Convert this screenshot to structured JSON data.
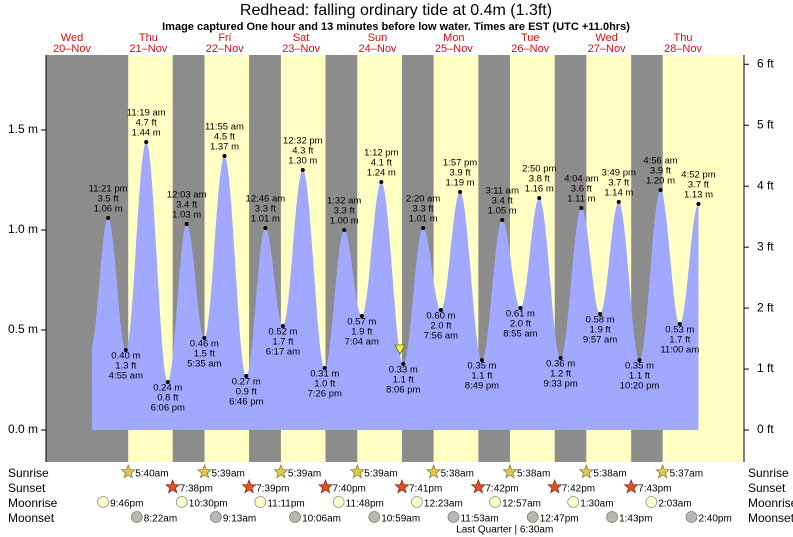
{
  "title": "Redhead: falling  ordinary tide at 0.4m (1.3ft)",
  "subtitle": "Image captured One hour and 13 minutes before low water. Times are EST (UTC +11.0hrs)",
  "rows": {
    "sunrise": "Sunrise",
    "sunset": "Sunset",
    "moonrise": "Moonrise",
    "moonset": "Moonset"
  },
  "chart_data": {
    "type": "tide",
    "ylim": [
      -0.16,
      1.875
    ],
    "yticks": [
      {
        "value": 0,
        "label": "0.0 m"
      },
      {
        "value": 0.5,
        "label": "0.5 m"
      },
      {
        "value": 1,
        "label": "1.0 m"
      },
      {
        "value": 1.5,
        "label": "1.5 m"
      }
    ],
    "y2lim": [
      -0.525,
      6.152
    ],
    "y2ticks": [
      {
        "value": 0,
        "label": "0 ft"
      },
      {
        "value": 1,
        "label": "1 ft"
      },
      {
        "value": 2,
        "label": "2 ft"
      },
      {
        "value": 3,
        "label": "3 ft"
      },
      {
        "value": 4,
        "label": "4 ft"
      },
      {
        "value": 5,
        "label": "5 ft"
      },
      {
        "value": 6,
        "label": "6 ft"
      }
    ],
    "color": "#a0a8ff",
    "days": [
      {
        "weekday": "Wed",
        "date": "20–Nov",
        "moonrise": "9:46pm",
        "tides": [
          {
            "time": "11:21 pm",
            "ft": 3.5,
            "ft_label": "3.5 ft",
            "m": 1.06,
            "m_label": "1.06 m"
          }
        ]
      },
      {
        "weekday": "Thu",
        "date": "21–Nov",
        "sunrise": "5:40am",
        "sunset": "7:38pm",
        "moonrise": "10:30pm",
        "moonset": "8:22am",
        "tides": [
          {
            "time": "4:55 am",
            "ft": 1.3,
            "ft_label": "1.3 ft",
            "m": 0.4,
            "m_label": "0.40 m"
          },
          {
            "time": "11:19 am",
            "ft": 4.7,
            "ft_label": "4.7 ft",
            "m": 1.44,
            "m_label": "1.44 m"
          },
          {
            "time": "6:06 pm",
            "ft": 0.8,
            "ft_label": "0.8 ft",
            "m": 0.24,
            "m_label": "0.24 m"
          }
        ]
      },
      {
        "weekday": "Fri",
        "date": "22–Nov",
        "sunrise": "5:39am",
        "sunset": "7:39pm",
        "moonrise": "11:11pm",
        "moonset": "9:13am",
        "tides": [
          {
            "time": "12:03 am",
            "ft": 3.4,
            "ft_label": "3.4 ft",
            "m": 1.03,
            "m_label": "1.03 m"
          },
          {
            "time": "5:35 am",
            "ft": 1.5,
            "ft_label": "1.5 ft",
            "m": 0.46,
            "m_label": "0.46 m"
          },
          {
            "time": "11:55 am",
            "ft": 4.5,
            "ft_label": "4.5 ft",
            "m": 1.37,
            "m_label": "1.37 m"
          },
          {
            "time": "6:46 pm",
            "ft": 0.9,
            "ft_label": "0.9 ft",
            "m": 0.27,
            "m_label": "0.27 m"
          }
        ]
      },
      {
        "weekday": "Sat",
        "date": "23–Nov",
        "sunrise": "5:39am",
        "sunset": "7:40pm",
        "moonrise": "11:48pm",
        "moonset": "10:06am",
        "tides": [
          {
            "time": "12:46 am",
            "ft": 3.3,
            "ft_label": "3.3 ft",
            "m": 1.01,
            "m_label": "1.01 m"
          },
          {
            "time": "6:17 am",
            "ft": 1.7,
            "ft_label": "1.7 ft",
            "m": 0.52,
            "m_label": "0.52 m"
          },
          {
            "time": "12:32 pm",
            "ft": 4.3,
            "ft_label": "4.3 ft",
            "m": 1.3,
            "m_label": "1.30 m"
          },
          {
            "time": "7:26 pm",
            "ft": 1.0,
            "ft_label": "1.0 ft",
            "m": 0.31,
            "m_label": "0.31 m"
          }
        ]
      },
      {
        "weekday": "Sun",
        "date": "24–Nov",
        "sunrise": "5:39am",
        "sunset": "7:41pm",
        "moonset": "10:59am",
        "tides": [
          {
            "time": "1:32 am",
            "ft": 3.3,
            "ft_label": "3.3 ft",
            "m": 1.0,
            "m_label": "1.00 m"
          },
          {
            "time": "7:04 am",
            "ft": 1.9,
            "ft_label": "1.9 ft",
            "m": 0.57,
            "m_label": "0.57 m"
          },
          {
            "time": "1:12 pm",
            "ft": 4.1,
            "ft_label": "4.1 ft",
            "m": 1.24,
            "m_label": "1.24 m"
          },
          {
            "time": "8:06 pm",
            "ft": 1.1,
            "ft_label": "1.1 ft",
            "m": 0.33,
            "m_label": "0.33 m"
          }
        ]
      },
      {
        "weekday": "Mon",
        "date": "25–Nov",
        "sunrise": "5:38am",
        "sunset": "7:42pm",
        "moonrise": "12:23am",
        "moonset": "11:53am",
        "tides": [
          {
            "time": "2:20 am",
            "ft": 3.3,
            "ft_label": "3.3 ft",
            "m": 1.01,
            "m_label": "1.01 m"
          },
          {
            "time": "7:56 am",
            "ft": 2.0,
            "ft_label": "2.0 ft",
            "m": 0.6,
            "m_label": "0.60 m"
          },
          {
            "time": "1:57 pm",
            "ft": 3.9,
            "ft_label": "3.9 ft",
            "m": 1.19,
            "m_label": "1.19 m"
          },
          {
            "time": "8:49 pm",
            "ft": 1.1,
            "ft_label": "1.1 ft",
            "m": 0.35,
            "m_label": "0.35 m"
          }
        ]
      },
      {
        "weekday": "Tue",
        "date": "26–Nov",
        "sunrise": "5:38am",
        "sunset": "7:42pm",
        "moonrise": "12:57am",
        "moonset": "12:47pm",
        "moon_phase": "Last Quarter | 6:30am",
        "tides": [
          {
            "time": "3:11 am",
            "ft": 3.4,
            "ft_label": "3.4 ft",
            "m": 1.05,
            "m_label": "1.05 m"
          },
          {
            "time": "8:55 am",
            "ft": 2.0,
            "ft_label": "2.0 ft",
            "m": 0.61,
            "m_label": "0.61 m"
          },
          {
            "time": "2:50 pm",
            "ft": 3.8,
            "ft_label": "3.8 ft",
            "m": 1.16,
            "m_label": "1.16 m"
          },
          {
            "time": "9:33 pm",
            "ft": 1.2,
            "ft_label": "1.2 ft",
            "m": 0.36,
            "m_label": "0.36 m"
          }
        ]
      },
      {
        "weekday": "Wed",
        "date": "27–Nov",
        "sunrise": "5:38am",
        "sunset": "7:43pm",
        "moonrise": "1:30am",
        "moonset": "1:43pm",
        "tides": [
          {
            "time": "4:04 am",
            "ft": 3.6,
            "ft_label": "3.6 ft",
            "m": 1.11,
            "m_label": "1.11 m"
          },
          {
            "time": "9:57 am",
            "ft": 1.9,
            "ft_label": "1.9 ft",
            "m": 0.58,
            "m_label": "0.58 m"
          },
          {
            "time": "3:49 pm",
            "ft": 3.7,
            "ft_label": "3.7 ft",
            "m": 1.14,
            "m_label": "1.14 m"
          },
          {
            "time": "10:20 pm",
            "ft": 1.1,
            "ft_label": "1.1 ft",
            "m": 0.35,
            "m_label": "0.35 m"
          }
        ]
      },
      {
        "weekday": "Thu",
        "date": "28–Nov",
        "sunrise": "5:37am",
        "moonrise": "2:03am",
        "moonset": "2:40pm",
        "tides": [
          {
            "time": "4:56 am",
            "ft": 3.9,
            "ft_label": "3.9 ft",
            "m": 1.2,
            "m_label": "1.20 m"
          },
          {
            "time": "11:00 am",
            "ft": 1.7,
            "ft_label": "1.7 ft",
            "m": 0.53,
            "m_label": "0.53 m"
          },
          {
            "time": "4:52 pm",
            "ft": 3.7,
            "ft_label": "3.7 ft",
            "m": 1.13,
            "m_label": "1.13 m"
          }
        ]
      }
    ]
  }
}
